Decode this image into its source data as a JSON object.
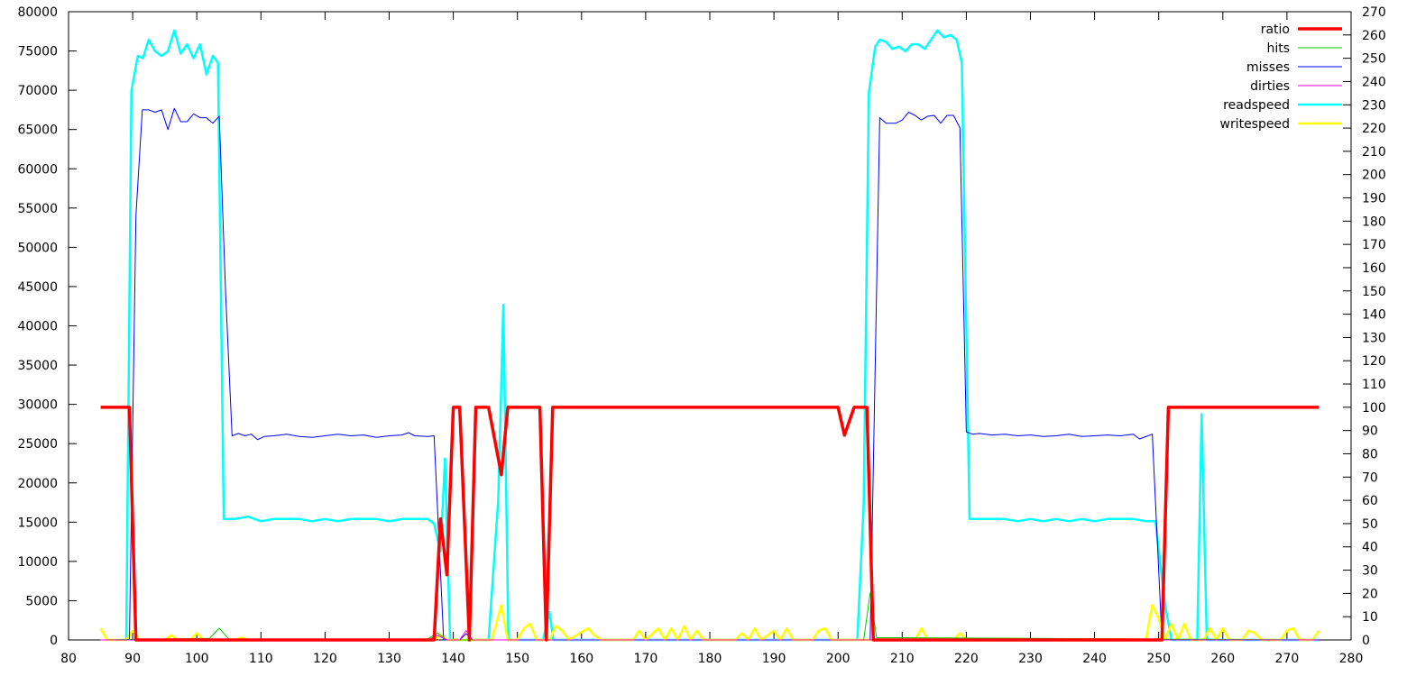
{
  "chart_data": {
    "type": "line",
    "title": "",
    "xlabel": "",
    "ylabel": "",
    "y2label": "",
    "xlim": [
      80,
      280
    ],
    "ylim": [
      0,
      80000
    ],
    "y2lim": [
      0,
      270
    ],
    "x_ticks": [
      80,
      90,
      100,
      110,
      120,
      130,
      140,
      150,
      160,
      170,
      180,
      190,
      200,
      210,
      220,
      230,
      240,
      250,
      260,
      270,
      280
    ],
    "y_ticks": [
      0,
      5000,
      10000,
      15000,
      20000,
      25000,
      30000,
      35000,
      40000,
      45000,
      50000,
      55000,
      60000,
      65000,
      70000,
      75000,
      80000
    ],
    "y2_ticks": [
      0,
      10,
      20,
      30,
      40,
      50,
      60,
      70,
      80,
      90,
      100,
      110,
      120,
      130,
      140,
      150,
      160,
      170,
      180,
      190,
      200,
      210,
      220,
      230,
      240,
      250,
      260,
      270
    ],
    "grid": false,
    "legend_position": "top-right",
    "series": [
      {
        "name": "ratio",
        "color": "#ff0000",
        "width": 3.5,
        "axis": "y2",
        "points": [
          [
            85,
            100
          ],
          [
            89.5,
            100
          ],
          [
            90.5,
            0
          ],
          [
            137,
            0
          ],
          [
            138,
            52
          ],
          [
            139,
            28
          ],
          [
            140,
            100
          ],
          [
            141,
            100
          ],
          [
            142.5,
            0
          ],
          [
            143.5,
            100
          ],
          [
            145.5,
            100
          ],
          [
            147.5,
            71
          ],
          [
            148.5,
            100
          ],
          [
            153.5,
            100
          ],
          [
            154.5,
            0
          ],
          [
            155.5,
            100
          ],
          [
            200,
            100
          ],
          [
            201,
            88
          ],
          [
            202.5,
            100
          ],
          [
            204.5,
            100
          ],
          [
            205.5,
            0
          ],
          [
            250.5,
            0
          ],
          [
            251.5,
            100
          ],
          [
            275,
            100
          ]
        ]
      },
      {
        "name": "hits",
        "color": "#00cc00",
        "width": 1,
        "axis": "y",
        "points": [
          [
            85,
            0
          ],
          [
            102,
            200
          ],
          [
            103.5,
            1500
          ],
          [
            105,
            100
          ],
          [
            136,
            100
          ],
          [
            137.5,
            900
          ],
          [
            139,
            0
          ],
          [
            204,
            0
          ],
          [
            205,
            6000
          ],
          [
            206,
            300
          ],
          [
            275,
            0
          ]
        ]
      },
      {
        "name": "misses",
        "color": "#0000ff",
        "width": 1,
        "axis": "y",
        "points": [
          [
            89.5,
            0
          ],
          [
            90.5,
            54000
          ],
          [
            91.5,
            67500
          ],
          [
            92.5,
            67500
          ],
          [
            93.5,
            67200
          ],
          [
            94.5,
            67500
          ],
          [
            95.5,
            65000
          ],
          [
            96.5,
            67700
          ],
          [
            97.5,
            66000
          ],
          [
            98.5,
            66000
          ],
          [
            99.5,
            67000
          ],
          [
            100.5,
            66500
          ],
          [
            101.5,
            66500
          ],
          [
            102.5,
            65800
          ],
          [
            103.5,
            66700
          ],
          [
            104.5,
            44000
          ],
          [
            105.5,
            26000
          ],
          [
            106.5,
            26300
          ],
          [
            107.5,
            26000
          ],
          [
            108.5,
            26200
          ],
          [
            109.5,
            25500
          ],
          [
            110.5,
            25900
          ],
          [
            112,
            26000
          ],
          [
            114,
            26200
          ],
          [
            116,
            25900
          ],
          [
            118,
            25800
          ],
          [
            120,
            26000
          ],
          [
            122,
            26200
          ],
          [
            124,
            26000
          ],
          [
            126,
            26100
          ],
          [
            128,
            25800
          ],
          [
            130,
            26000
          ],
          [
            132,
            26100
          ],
          [
            133,
            26400
          ],
          [
            134,
            26000
          ],
          [
            136,
            25900
          ],
          [
            137,
            26000
          ],
          [
            138.5,
            0
          ],
          [
            141,
            0
          ],
          [
            142,
            800
          ],
          [
            143,
            0
          ],
          [
            205,
            0
          ],
          [
            206.5,
            66500
          ],
          [
            207.5,
            65800
          ],
          [
            209,
            65800
          ],
          [
            210,
            66200
          ],
          [
            211,
            67200
          ],
          [
            212,
            66800
          ],
          [
            213,
            66200
          ],
          [
            214,
            66700
          ],
          [
            215,
            66800
          ],
          [
            216,
            65800
          ],
          [
            217,
            66800
          ],
          [
            218,
            66800
          ],
          [
            219,
            65200
          ],
          [
            220,
            26500
          ],
          [
            221,
            26200
          ],
          [
            222,
            26300
          ],
          [
            224,
            26100
          ],
          [
            226,
            26200
          ],
          [
            228,
            26000
          ],
          [
            230,
            26100
          ],
          [
            232,
            25900
          ],
          [
            234,
            26000
          ],
          [
            236,
            26200
          ],
          [
            238,
            25900
          ],
          [
            240,
            26000
          ],
          [
            242,
            26100
          ],
          [
            244,
            26000
          ],
          [
            246,
            26200
          ],
          [
            247,
            25600
          ],
          [
            249,
            26200
          ],
          [
            250.5,
            0
          ],
          [
            275,
            0
          ]
        ]
      },
      {
        "name": "dirties",
        "color": "#ff00ff",
        "width": 1,
        "axis": "y",
        "points": [
          [
            85,
            0
          ],
          [
            136,
            0
          ],
          [
            137.5,
            600
          ],
          [
            139,
            0
          ],
          [
            141,
            0
          ],
          [
            142,
            1200
          ],
          [
            143,
            0
          ],
          [
            275,
            0
          ]
        ]
      },
      {
        "name": "readspeed",
        "color": "#00ffff",
        "width": 2.5,
        "axis": "y2",
        "points": [
          [
            89,
            0
          ],
          [
            89.8,
            236
          ],
          [
            90.8,
            251
          ],
          [
            91.6,
            250
          ],
          [
            92.5,
            258
          ],
          [
            93.5,
            253
          ],
          [
            94.5,
            251
          ],
          [
            95.5,
            253
          ],
          [
            96.5,
            262
          ],
          [
            97.5,
            252
          ],
          [
            98.5,
            256
          ],
          [
            99.5,
            250
          ],
          [
            100.5,
            256
          ],
          [
            101.5,
            243
          ],
          [
            102.5,
            251
          ],
          [
            103.3,
            248
          ],
          [
            104.2,
            52
          ],
          [
            106,
            52
          ],
          [
            108,
            53
          ],
          [
            110,
            51
          ],
          [
            112,
            52
          ],
          [
            114,
            52
          ],
          [
            116,
            52
          ],
          [
            118,
            51
          ],
          [
            120,
            52
          ],
          [
            122,
            51
          ],
          [
            124,
            52
          ],
          [
            126,
            52
          ],
          [
            128,
            52
          ],
          [
            130,
            51
          ],
          [
            132,
            52
          ],
          [
            134,
            52
          ],
          [
            136,
            52
          ],
          [
            137,
            50
          ],
          [
            138,
            38
          ],
          [
            138.7,
            78
          ],
          [
            139.5,
            0
          ],
          [
            145.5,
            0
          ],
          [
            147,
            60
          ],
          [
            147.8,
            144
          ],
          [
            148.6,
            0
          ],
          [
            154,
            0
          ],
          [
            155,
            12
          ],
          [
            155.6,
            0
          ],
          [
            203,
            0
          ],
          [
            204,
            58
          ],
          [
            204.8,
            235
          ],
          [
            205.8,
            255
          ],
          [
            206.5,
            258
          ],
          [
            207.5,
            257
          ],
          [
            208.5,
            254
          ],
          [
            209.5,
            255
          ],
          [
            210.5,
            253
          ],
          [
            211.5,
            256
          ],
          [
            212.5,
            256
          ],
          [
            213.5,
            254
          ],
          [
            214.5,
            258
          ],
          [
            215.5,
            262
          ],
          [
            216.5,
            259
          ],
          [
            217.5,
            260
          ],
          [
            218.5,
            258
          ],
          [
            219.3,
            248
          ],
          [
            220.5,
            52
          ],
          [
            222,
            52
          ],
          [
            224,
            52
          ],
          [
            226,
            52
          ],
          [
            228,
            51
          ],
          [
            230,
            52
          ],
          [
            232,
            51
          ],
          [
            234,
            52
          ],
          [
            236,
            51
          ],
          [
            238,
            52
          ],
          [
            240,
            51
          ],
          [
            242,
            52
          ],
          [
            244,
            52
          ],
          [
            246,
            52
          ],
          [
            248,
            51
          ],
          [
            249.5,
            51
          ],
          [
            251,
            15
          ],
          [
            252,
            0
          ],
          [
            256,
            0
          ],
          [
            256.7,
            97
          ],
          [
            257.5,
            0
          ],
          [
            275,
            0
          ]
        ]
      },
      {
        "name": "writespeed",
        "color": "#ffff00",
        "width": 2.5,
        "axis": "y2",
        "points": [
          [
            85,
            5
          ],
          [
            86,
            0
          ],
          [
            89,
            0
          ],
          [
            90,
            4
          ],
          [
            91,
            0
          ],
          [
            95,
            0
          ],
          [
            96,
            2
          ],
          [
            97,
            0
          ],
          [
            99,
            0
          ],
          [
            100,
            3
          ],
          [
            101,
            0
          ],
          [
            106,
            0
          ],
          [
            107,
            1
          ],
          [
            108,
            0
          ],
          [
            137,
            0
          ],
          [
            138,
            2
          ],
          [
            139,
            0
          ],
          [
            146,
            0
          ],
          [
            147.5,
            15
          ],
          [
            148.5,
            0
          ],
          [
            150,
            0
          ],
          [
            151,
            5
          ],
          [
            152,
            7
          ],
          [
            153,
            0
          ],
          [
            155,
            0
          ],
          [
            156,
            6
          ],
          [
            157,
            4
          ],
          [
            158,
            0
          ],
          [
            161,
            5
          ],
          [
            162,
            2
          ],
          [
            163,
            0
          ],
          [
            168,
            0
          ],
          [
            169,
            4
          ],
          [
            170,
            0
          ],
          [
            172,
            5
          ],
          [
            173,
            0
          ],
          [
            174,
            5
          ],
          [
            175,
            0
          ],
          [
            176,
            6
          ],
          [
            177,
            0
          ],
          [
            178,
            4
          ],
          [
            179,
            0
          ],
          [
            184,
            0
          ],
          [
            185,
            3
          ],
          [
            186,
            0
          ],
          [
            187,
            5
          ],
          [
            188,
            0
          ],
          [
            190,
            4
          ],
          [
            191,
            0
          ],
          [
            192,
            5
          ],
          [
            193,
            0
          ],
          [
            196,
            0
          ],
          [
            197,
            4
          ],
          [
            198,
            5
          ],
          [
            199,
            0
          ],
          [
            204,
            0
          ],
          [
            212,
            0
          ],
          [
            213,
            5
          ],
          [
            214,
            0
          ],
          [
            218,
            0
          ],
          [
            219,
            3
          ],
          [
            220,
            0
          ],
          [
            248,
            0
          ],
          [
            249,
            15
          ],
          [
            250,
            9
          ],
          [
            251,
            0
          ],
          [
            252,
            7
          ],
          [
            253,
            0
          ],
          [
            254,
            7
          ],
          [
            255,
            0
          ],
          [
            257,
            0
          ],
          [
            258,
            5
          ],
          [
            259,
            0
          ],
          [
            260,
            5
          ],
          [
            261,
            0
          ],
          [
            263,
            0
          ],
          [
            264,
            4
          ],
          [
            265,
            3
          ],
          [
            266,
            0
          ],
          [
            269,
            0
          ],
          [
            270,
            4
          ],
          [
            271,
            5
          ],
          [
            272,
            0
          ],
          [
            274,
            0
          ],
          [
            275,
            4
          ]
        ]
      }
    ]
  }
}
